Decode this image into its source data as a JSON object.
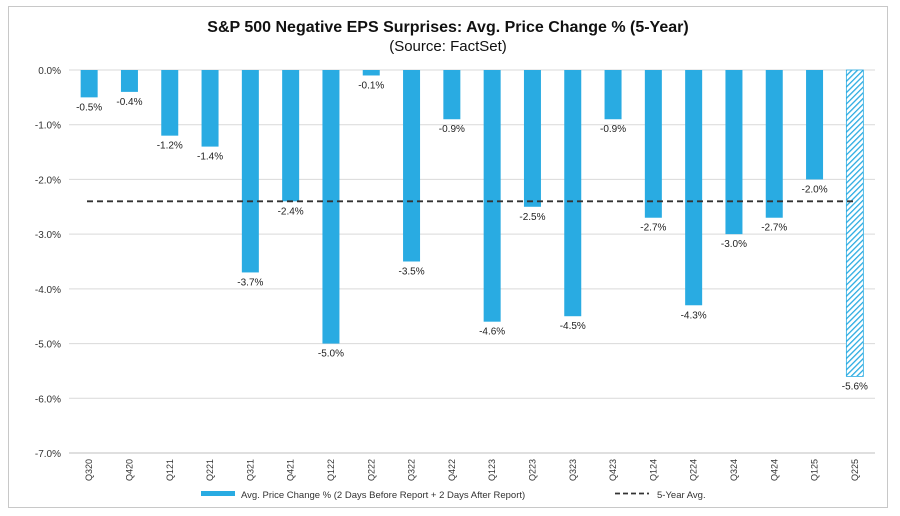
{
  "chart_data": {
    "type": "bar",
    "title": "S&P 500 Negative EPS Surprises: Avg. Price Change % (5-Year)",
    "subtitle": "(Source: FactSet)",
    "categories": [
      "Q320",
      "Q420",
      "Q121",
      "Q221",
      "Q321",
      "Q421",
      "Q122",
      "Q222",
      "Q322",
      "Q422",
      "Q123",
      "Q223",
      "Q323",
      "Q423",
      "Q124",
      "Q224",
      "Q324",
      "Q424",
      "Q125",
      "Q225"
    ],
    "series": [
      {
        "name": "Avg. Price Change % (2 Days Before Report + 2 Days After Report)",
        "values": [
          -0.5,
          -0.4,
          -1.2,
          -1.4,
          -3.7,
          -2.4,
          -5.0,
          -0.1,
          -3.5,
          -0.9,
          -4.6,
          -2.5,
          -4.5,
          -0.9,
          -2.7,
          -4.3,
          -3.0,
          -2.7,
          -2.0,
          -5.6
        ],
        "data_labels": [
          "-0.5%",
          "-0.4%",
          "-1.2%",
          "-1.4%",
          "-3.7%",
          "-2.4%",
          "-5.0%",
          "-0.1%",
          "-3.5%",
          "-0.9%",
          "-4.6%",
          "-2.5%",
          "-4.5%",
          "-0.9%",
          "-2.7%",
          "-4.3%",
          "-3.0%",
          "-2.7%",
          "-2.0%",
          "-5.6%"
        ],
        "color": "#29abe2",
        "last_bar_hatched": true
      },
      {
        "name": "5-Year Avg.",
        "type": "line",
        "style": "dashed",
        "value": -2.4,
        "color": "#333333"
      }
    ],
    "yticks": [
      "0.0%",
      "-1.0%",
      "-2.0%",
      "-3.0%",
      "-4.0%",
      "-5.0%",
      "-6.0%",
      "-7.0%"
    ],
    "ytick_values": [
      0,
      -1,
      -2,
      -3,
      -4,
      -5,
      -6,
      -7
    ],
    "ylim": [
      -7,
      0
    ],
    "grid": true,
    "legend_position": "bottom"
  }
}
